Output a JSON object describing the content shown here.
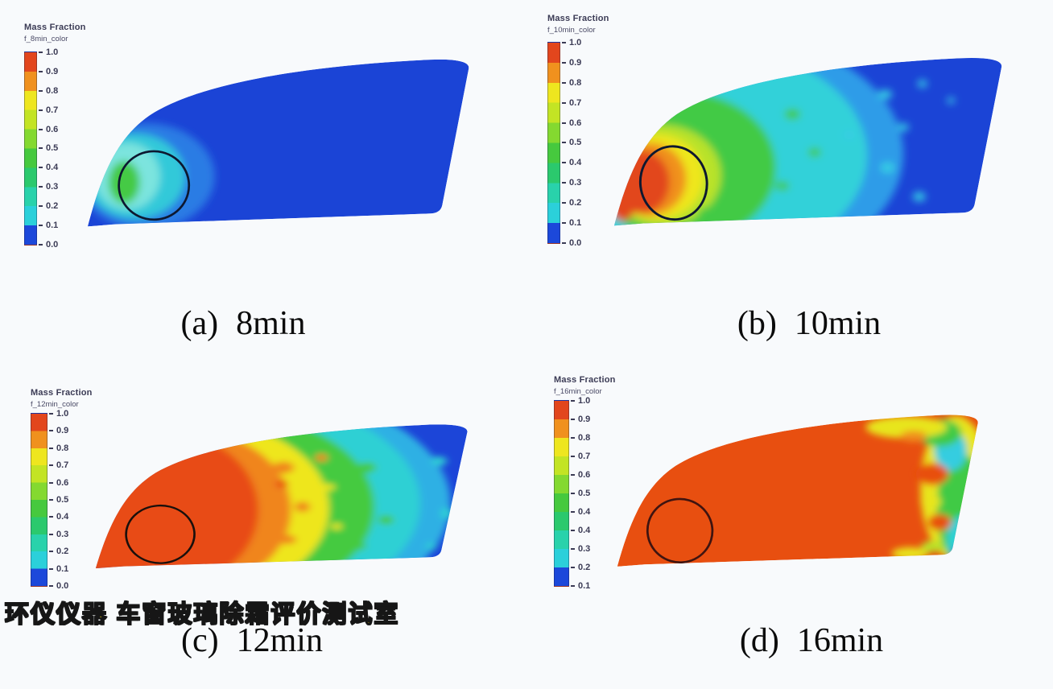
{
  "page": {
    "background": "#f8fafc"
  },
  "watermark": {
    "text": "环仪仪器 车窗玻璃除霜评价测试室",
    "color": "#f6d60a",
    "outline_color": "#161616"
  },
  "colorbar": {
    "band_colors_top_to_bottom": [
      "#e2461d",
      "#f0911e",
      "#eee61f",
      "#c3e424",
      "#84d930",
      "#46c93e",
      "#2bc96d",
      "#29d2ab",
      "#2bd0da",
      "#1c48da"
    ],
    "value_top": "1.0",
    "value_bottom": "0.0"
  },
  "panels": [
    {
      "key": "a",
      "caption_prefix": "(a)",
      "caption_time": "8min",
      "legend": {
        "title": "Mass Fraction",
        "subtitle": "f_8min_color",
        "ticks": [
          "1.0",
          "0.9",
          "0.8",
          "0.7",
          "0.6",
          "0.5",
          "0.4",
          "0.3",
          "0.2",
          "0.1",
          "0.0"
        ]
      }
    },
    {
      "key": "b",
      "caption_prefix": "(b)",
      "caption_time": "10min",
      "legend": {
        "title": "Mass Fraction",
        "subtitle": "f_10min_color",
        "ticks": [
          "1.0",
          "0.9",
          "0.8",
          "0.7",
          "0.6",
          "0.5",
          "0.4",
          "0.3",
          "0.2",
          "0.1",
          "0.0"
        ]
      }
    },
    {
      "key": "c",
      "caption_prefix": "(c)",
      "caption_time": "12min",
      "legend": {
        "title": "Mass Fraction",
        "subtitle": "f_12min_color",
        "ticks": [
          "1.0",
          "0.9",
          "0.8",
          "0.7",
          "0.6",
          "0.5",
          "0.4",
          "0.3",
          "0.2",
          "0.1",
          "0.0"
        ]
      }
    },
    {
      "key": "d",
      "caption_prefix": "(d)",
      "caption_time": "16min",
      "legend": {
        "title": "Mass Fraction",
        "subtitle": "f_16min_color",
        "ticks": [
          "1.0",
          "0.9",
          "0.8",
          "0.7",
          "0.6",
          "0.5",
          "0.4",
          "0.4",
          "0.3",
          "0.2",
          "0.1"
        ]
      }
    }
  ],
  "chart_data": [
    {
      "type": "heatmap",
      "panel": "a",
      "title": "(a) 8min",
      "variable": "Mass Fraction",
      "series_name": "f_8min_color",
      "colorbar_ticks": [
        1.0,
        0.9,
        0.8,
        0.7,
        0.6,
        0.5,
        0.4,
        0.3,
        0.2,
        0.1,
        0.0
      ],
      "colormap": "rainbow: red=1.0, orange=0.9, yellow=0.8-0.7, green=0.6-0.4, cyan=0.3-0.2, blue=0.1-0.0",
      "field_summary": "car side window almost entirely 0.0-0.1 (blue); small defrosted patch ~0.2-0.5 (cyan with green core) at lower-left near defroster vent, mostly inside black evaluation-zone outline",
      "annotation": "black closed oval outline marking evaluation zone at lower-left"
    },
    {
      "type": "heatmap",
      "panel": "b",
      "title": "(b) 10min",
      "variable": "Mass Fraction",
      "series_name": "f_10min_color",
      "colorbar_ticks": [
        1.0,
        0.9,
        0.8,
        0.7,
        0.6,
        0.5,
        0.4,
        0.3,
        0.2,
        0.1,
        0.0
      ],
      "colormap": "rainbow: red=1.0 to blue=0.0",
      "field_summary": "red core >=0.9 inside evaluation zone at lower-left, surrounded by orange/yellow ring 0.7-0.9, green 0.4-0.6, mottled cyan 0.2-0.3 across middle; right half still 0.0-0.1 (blue) with scattered cyan speckles",
      "annotation": "black closed oval outline marking evaluation zone at lower-left"
    },
    {
      "type": "heatmap",
      "panel": "c",
      "title": "(c) 12min",
      "variable": "Mass Fraction",
      "series_name": "f_12min_color",
      "colorbar_ticks": [
        1.0,
        0.9,
        0.8,
        0.7,
        0.6,
        0.5,
        0.4,
        0.3,
        0.2,
        0.1,
        0.0
      ],
      "colormap": "rainbow: red=1.0 to blue=0.0",
      "field_summary": "left ~40% of window solid red-orange >=0.9 (evaluation zone fully cleared); mottled yellow/green 0.5-0.8 band in middle; cyan 0.2-0.4 further right; far right edge blue 0.1-0.2",
      "annotation": "black closed oval outline marking evaluation zone at lower-left"
    },
    {
      "type": "heatmap",
      "panel": "d",
      "title": "(d) 16min",
      "variable": "Mass Fraction",
      "series_name": "f_16min_color",
      "colorbar_ticks": [
        1.0,
        0.9,
        0.8,
        0.7,
        0.6,
        0.5,
        0.4,
        0.4,
        0.3,
        0.2,
        0.1
      ],
      "colormap": "rainbow: red=1.0 to blue=0.1",
      "field_summary": "window ~90% solid red-orange >=0.9; narrow mottled strip of yellow/green/cyan 0.3-0.8 along right (B-pillar) edge with a small blue spot ~0.1-0.2 at bottom-right corner",
      "annotation": "black closed oval outline marking evaluation zone at lower-left"
    }
  ]
}
